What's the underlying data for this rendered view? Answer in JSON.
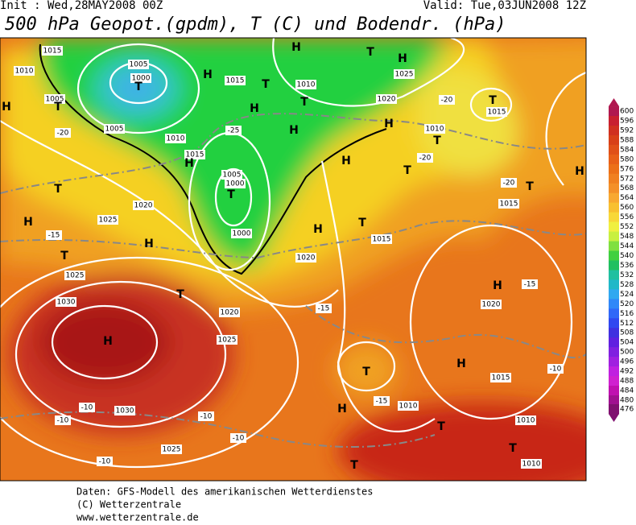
{
  "header": {
    "init": "Init : Wed,28MAY2008 00Z",
    "valid": "Valid: Tue,03JUN2008 12Z",
    "title": "500 hPa Geopot.(gpdm), T (C) und Bodendr. (hPa)"
  },
  "colorbar": {
    "levels": [
      600,
      596,
      592,
      588,
      584,
      580,
      576,
      572,
      568,
      564,
      560,
      556,
      552,
      548,
      544,
      540,
      536,
      532,
      528,
      524,
      520,
      516,
      512,
      508,
      504,
      500,
      496,
      492,
      488,
      484,
      480,
      476
    ],
    "colors": [
      "#b01850",
      "#c82030",
      "#d03020",
      "#d84018",
      "#e05018",
      "#e86018",
      "#ec7018",
      "#f08020",
      "#f49028",
      "#f8a830",
      "#f8c030",
      "#f8d838",
      "#f0f040",
      "#c8f040",
      "#80e040",
      "#40d040",
      "#20c060",
      "#20c0a0",
      "#20b8c8",
      "#30a8f0",
      "#3088f8",
      "#3068f8",
      "#3048f0",
      "#4030e0",
      "#6020e0",
      "#8020e0",
      "#a020e0",
      "#c020e0",
      "#d020d0",
      "#c010b0",
      "#a01090",
      "#801070"
    ]
  },
  "map_labels": [
    "1015",
    "1010",
    "1005",
    "1000",
    "T",
    "1005",
    "T",
    "H",
    "-20",
    "1005",
    "1010",
    "1015",
    "H",
    "1005",
    "1000",
    "T",
    "1015",
    "H",
    "T",
    "H",
    "1010",
    "T",
    "H",
    "-25",
    "H",
    "T",
    "H",
    "1025",
    "1020",
    "H",
    "-20",
    "T",
    "1015",
    "1010",
    "T",
    "-20",
    "H",
    "T",
    "-20",
    "T",
    "H",
    "1015",
    "T",
    "1020",
    "H",
    "1025",
    "-15",
    "H",
    "T",
    "1000",
    "H",
    "T",
    "1015",
    "1020",
    "1025",
    "T",
    "H",
    "-15",
    "1020",
    "1030",
    "H",
    "1025",
    "-15",
    "1020",
    "H",
    "T",
    "-15",
    "1010",
    "H",
    "1030",
    "-10",
    "-10",
    "-10",
    "-10",
    "1025",
    "-10",
    "T",
    "T",
    "T",
    "1010",
    "1010",
    "-10",
    "1015"
  ],
  "footer": [
    "Daten: GFS-Modell des amerikanischen Wetterdienstes",
    "(C) Wetterzentrale",
    "www.wetterzentrale.de"
  ]
}
